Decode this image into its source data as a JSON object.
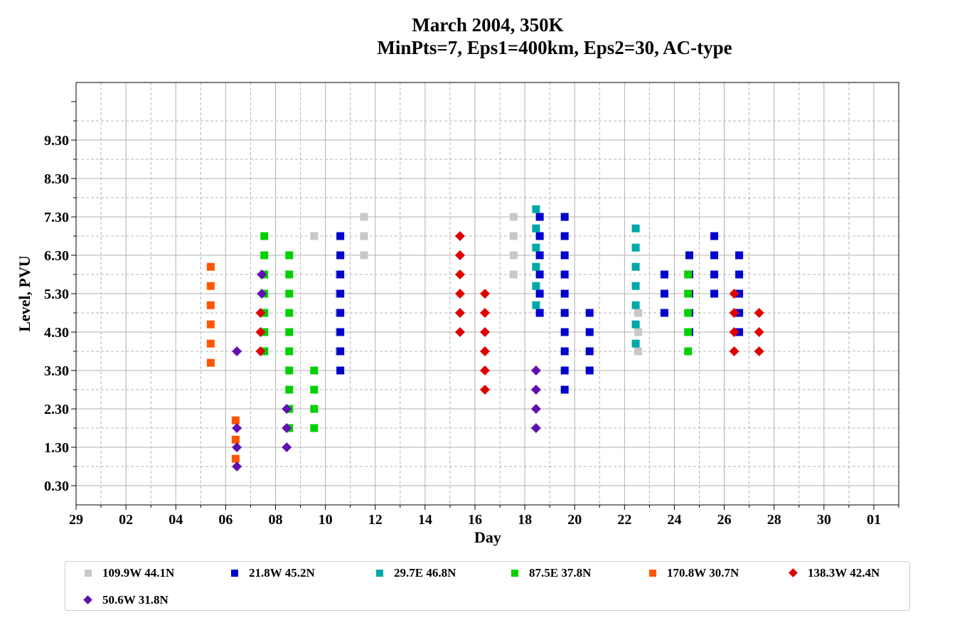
{
  "title_line1": "March 2004, 350K",
  "title_line2": "MinPts=7, Eps1=400km, Eps2=30, AC-type",
  "chart_data": {
    "type": "scatter",
    "xlabel": "Day",
    "ylabel": "Level, PVU",
    "xlim": [
      29,
      62
    ],
    "ylim": [
      -0.2,
      10.8
    ],
    "x_ticks": [
      29,
      31,
      33,
      35,
      37,
      39,
      41,
      43,
      45,
      47,
      49,
      51,
      53,
      55,
      57,
      59,
      61
    ],
    "x_tick_labels": [
      "29",
      "02",
      "04",
      "06",
      "08",
      "10",
      "12",
      "14",
      "16",
      "18",
      "20",
      "22",
      "24",
      "26",
      "28",
      "30",
      "01"
    ],
    "y_ticks": [
      0.3,
      1.3,
      2.3,
      3.3,
      4.3,
      5.3,
      6.3,
      7.3,
      8.3,
      9.3
    ],
    "y_tick_labels": [
      "0.30",
      "1.30",
      "2.30",
      "3.30",
      "4.30",
      "5.30",
      "6.30",
      "7.30",
      "8.30",
      "9.30"
    ],
    "grid": true,
    "legend_position": "bottom",
    "series": [
      {
        "name": "109.9W 44.1N",
        "marker": "square",
        "color": "#c8c8c8",
        "points": [
          [
            38.55,
            6.8
          ],
          [
            39.55,
            5.8
          ],
          [
            39.55,
            5.3
          ],
          [
            39.55,
            4.8
          ],
          [
            39.55,
            4.3
          ],
          [
            39.55,
            3.8
          ],
          [
            40.55,
            7.3
          ],
          [
            40.55,
            6.8
          ],
          [
            40.55,
            6.3
          ],
          [
            46.55,
            7.3
          ],
          [
            46.55,
            6.8
          ],
          [
            46.55,
            6.3
          ],
          [
            46.55,
            5.8
          ],
          [
            51.55,
            4.8
          ],
          [
            51.55,
            4.3
          ],
          [
            51.55,
            3.8
          ]
        ]
      },
      {
        "name": "21.8W 45.2N",
        "marker": "square",
        "color": "#0000cd",
        "points": [
          [
            39.6,
            6.8
          ],
          [
            39.6,
            6.3
          ],
          [
            39.6,
            5.8
          ],
          [
            39.6,
            5.3
          ],
          [
            39.6,
            4.8
          ],
          [
            39.6,
            4.3
          ],
          [
            39.6,
            3.8
          ],
          [
            39.6,
            3.3
          ],
          [
            47.6,
            7.3
          ],
          [
            47.6,
            6.8
          ],
          [
            47.6,
            6.3
          ],
          [
            47.6,
            5.8
          ],
          [
            47.6,
            5.3
          ],
          [
            47.6,
            4.8
          ],
          [
            48.6,
            7.3
          ],
          [
            48.6,
            6.8
          ],
          [
            48.6,
            6.3
          ],
          [
            48.6,
            5.8
          ],
          [
            48.6,
            5.3
          ],
          [
            48.6,
            4.8
          ],
          [
            48.6,
            4.3
          ],
          [
            48.6,
            3.8
          ],
          [
            48.6,
            3.3
          ],
          [
            48.6,
            2.8
          ],
          [
            49.6,
            4.8
          ],
          [
            49.6,
            4.3
          ],
          [
            49.6,
            3.8
          ],
          [
            49.6,
            3.3
          ],
          [
            52.6,
            5.8
          ],
          [
            52.6,
            5.3
          ],
          [
            52.6,
            4.8
          ],
          [
            53.6,
            6.3
          ],
          [
            53.6,
            5.8
          ],
          [
            53.6,
            5.3
          ],
          [
            53.6,
            4.8
          ],
          [
            53.6,
            4.3
          ],
          [
            54.6,
            6.8
          ],
          [
            54.6,
            6.3
          ],
          [
            54.6,
            5.8
          ],
          [
            54.6,
            5.3
          ],
          [
            55.6,
            6.3
          ],
          [
            55.6,
            5.8
          ],
          [
            55.6,
            5.3
          ],
          [
            55.6,
            4.8
          ],
          [
            55.6,
            4.3
          ]
        ]
      },
      {
        "name": "29.7E 46.8N",
        "marker": "square",
        "color": "#00a8a8",
        "points": [
          [
            47.45,
            7.5
          ],
          [
            47.45,
            7.0
          ],
          [
            47.45,
            6.5
          ],
          [
            47.45,
            6.0
          ],
          [
            47.45,
            5.5
          ],
          [
            47.45,
            5.0
          ],
          [
            51.45,
            7.0
          ],
          [
            51.45,
            6.5
          ],
          [
            51.45,
            6.0
          ],
          [
            51.45,
            5.5
          ],
          [
            51.45,
            5.0
          ],
          [
            51.45,
            4.5
          ],
          [
            51.45,
            4.0
          ]
        ]
      },
      {
        "name": "87.5E 37.8N",
        "marker": "square",
        "color": "#00d000",
        "points": [
          [
            36.55,
            6.8
          ],
          [
            36.55,
            6.3
          ],
          [
            36.55,
            5.8
          ],
          [
            36.55,
            5.3
          ],
          [
            36.55,
            4.8
          ],
          [
            36.55,
            4.3
          ],
          [
            36.55,
            3.8
          ],
          [
            37.55,
            6.3
          ],
          [
            37.55,
            5.8
          ],
          [
            37.55,
            5.3
          ],
          [
            37.55,
            4.8
          ],
          [
            37.55,
            4.3
          ],
          [
            37.55,
            3.8
          ],
          [
            37.55,
            3.3
          ],
          [
            37.55,
            2.8
          ],
          [
            37.55,
            2.3
          ],
          [
            37.55,
            1.8
          ],
          [
            38.55,
            3.3
          ],
          [
            38.55,
            2.8
          ],
          [
            38.55,
            2.3
          ],
          [
            38.55,
            1.8
          ],
          [
            53.55,
            5.8
          ],
          [
            53.55,
            5.3
          ],
          [
            53.55,
            4.8
          ],
          [
            53.55,
            4.3
          ],
          [
            53.55,
            3.8
          ]
        ]
      },
      {
        "name": "170.8W 30.7N",
        "marker": "square",
        "color": "#ff5500",
        "points": [
          [
            34.4,
            6.0
          ],
          [
            34.4,
            5.5
          ],
          [
            34.4,
            5.0
          ],
          [
            34.4,
            4.5
          ],
          [
            34.4,
            4.0
          ],
          [
            34.4,
            3.5
          ],
          [
            35.4,
            2.0
          ],
          [
            35.4,
            1.5
          ],
          [
            35.4,
            1.0
          ]
        ]
      },
      {
        "name": "138.3W 42.4N",
        "marker": "diamond",
        "color": "#e00000",
        "points": [
          [
            36.4,
            4.8
          ],
          [
            36.4,
            4.3
          ],
          [
            36.4,
            3.8
          ],
          [
            44.4,
            6.8
          ],
          [
            44.4,
            6.3
          ],
          [
            44.4,
            5.8
          ],
          [
            44.4,
            5.3
          ],
          [
            44.4,
            4.8
          ],
          [
            44.4,
            4.3
          ],
          [
            45.4,
            5.3
          ],
          [
            45.4,
            4.8
          ],
          [
            45.4,
            4.3
          ],
          [
            45.4,
            3.8
          ],
          [
            45.4,
            3.3
          ],
          [
            45.4,
            2.8
          ],
          [
            55.4,
            5.3
          ],
          [
            55.4,
            4.8
          ],
          [
            55.4,
            4.3
          ],
          [
            55.4,
            3.8
          ],
          [
            56.4,
            4.8
          ],
          [
            56.4,
            4.3
          ],
          [
            56.4,
            3.8
          ]
        ]
      },
      {
        "name": "50.6W 31.8N",
        "marker": "diamond",
        "color": "#6010b0",
        "points": [
          [
            35.45,
            3.8
          ],
          [
            35.45,
            1.8
          ],
          [
            35.45,
            1.3
          ],
          [
            35.45,
            0.8
          ],
          [
            36.45,
            5.8
          ],
          [
            36.45,
            5.3
          ],
          [
            37.45,
            2.3
          ],
          [
            37.45,
            1.8
          ],
          [
            37.45,
            1.3
          ],
          [
            47.45,
            3.3
          ],
          [
            47.45,
            2.8
          ],
          [
            47.45,
            2.3
          ],
          [
            47.45,
            1.8
          ]
        ]
      }
    ]
  }
}
